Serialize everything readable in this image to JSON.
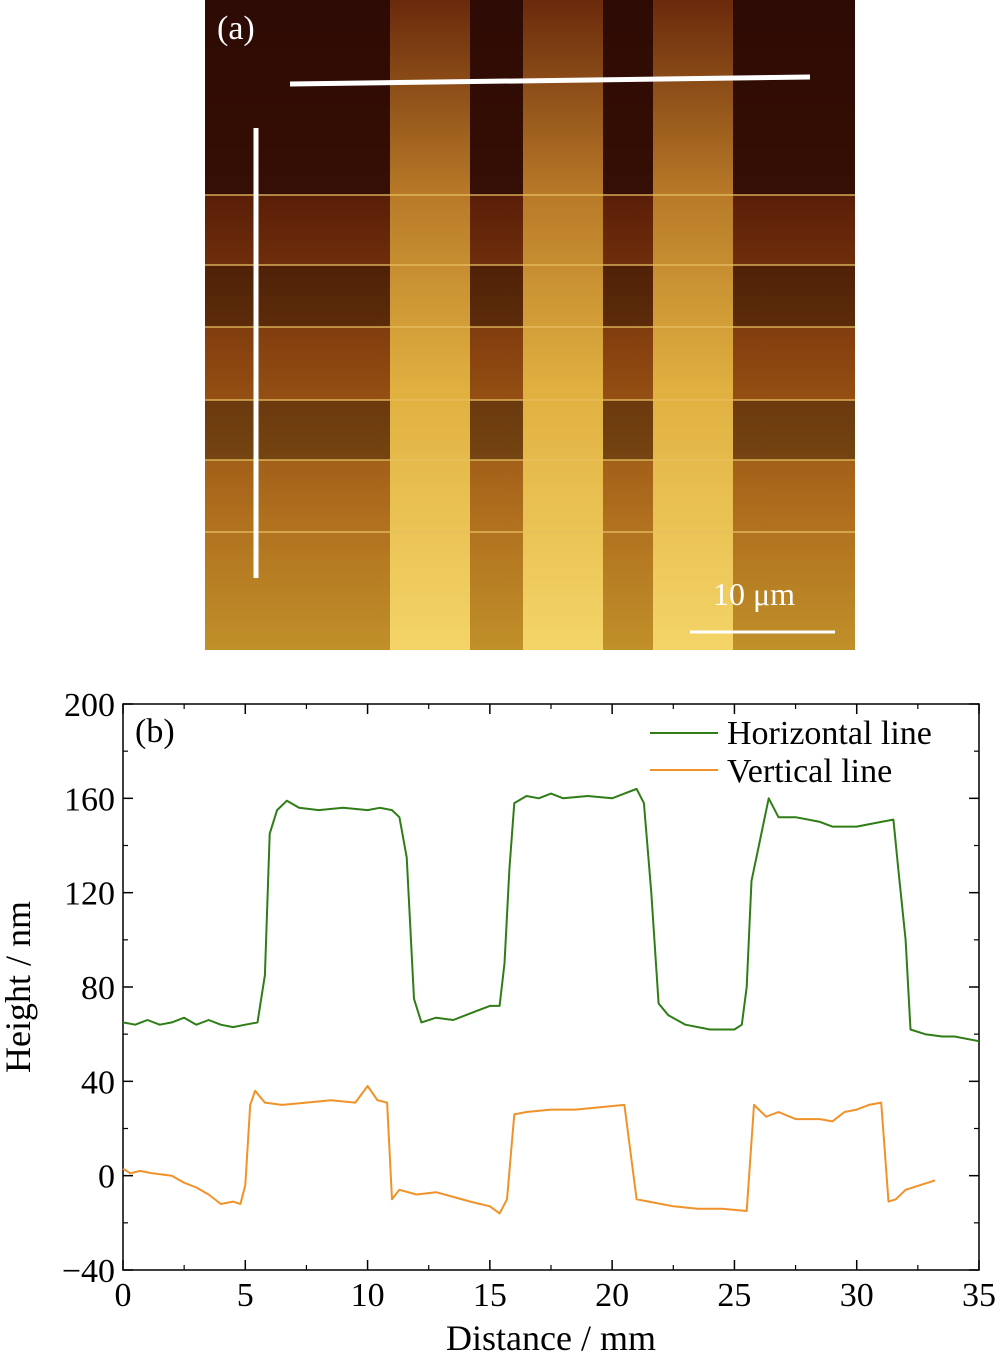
{
  "panel_a": {
    "label": "(a)",
    "scale_bar_label": "10 μm",
    "colors": {
      "dark": "#2a0a04",
      "mid": "#8a3a10",
      "bright": "#f0c850"
    }
  },
  "chart_data": {
    "type": "line",
    "panel_label": "(b)",
    "xlabel": "Distance / mm",
    "ylabel": "Height / nm",
    "xlim": [
      0,
      35
    ],
    "ylim": [
      -40,
      200
    ],
    "x_ticks": [
      "0",
      "5",
      "10",
      "15",
      "20",
      "25",
      "30",
      "35"
    ],
    "y_ticks": [
      "−40",
      "0",
      "40",
      "80",
      "120",
      "160",
      "200"
    ],
    "legend_position": "top-right",
    "grid": false,
    "series": [
      {
        "name": "Horizontal line",
        "color": "#2e7d17",
        "points": [
          [
            0,
            65
          ],
          [
            0.5,
            64
          ],
          [
            1,
            66
          ],
          [
            1.5,
            64
          ],
          [
            2,
            65
          ],
          [
            2.5,
            67
          ],
          [
            3,
            64
          ],
          [
            3.5,
            66
          ],
          [
            4,
            64
          ],
          [
            4.5,
            63
          ],
          [
            5,
            64
          ],
          [
            5.5,
            65
          ],
          [
            5.8,
            85
          ],
          [
            6,
            145
          ],
          [
            6.3,
            155
          ],
          [
            6.7,
            159
          ],
          [
            7.2,
            156
          ],
          [
            8,
            155
          ],
          [
            9,
            156
          ],
          [
            10,
            155
          ],
          [
            10.5,
            156
          ],
          [
            11,
            155
          ],
          [
            11.3,
            152
          ],
          [
            11.6,
            135
          ],
          [
            11.9,
            75
          ],
          [
            12.2,
            65
          ],
          [
            12.8,
            67
          ],
          [
            13.5,
            66
          ],
          [
            14,
            68
          ],
          [
            14.5,
            70
          ],
          [
            15,
            72
          ],
          [
            15.4,
            72
          ],
          [
            15.6,
            90
          ],
          [
            15.8,
            130
          ],
          [
            16,
            158
          ],
          [
            16.5,
            161
          ],
          [
            17,
            160
          ],
          [
            17.5,
            162
          ],
          [
            18,
            160
          ],
          [
            19,
            161
          ],
          [
            20,
            160
          ],
          [
            20.5,
            162
          ],
          [
            21,
            164
          ],
          [
            21.3,
            158
          ],
          [
            21.6,
            120
          ],
          [
            21.9,
            73
          ],
          [
            22.3,
            68
          ],
          [
            23,
            64
          ],
          [
            24,
            62
          ],
          [
            25,
            62
          ],
          [
            25.3,
            64
          ],
          [
            25.5,
            80
          ],
          [
            25.7,
            125
          ],
          [
            26,
            140
          ],
          [
            26.4,
            160
          ],
          [
            26.8,
            152
          ],
          [
            27.5,
            152
          ],
          [
            28.5,
            150
          ],
          [
            29,
            148
          ],
          [
            30,
            148
          ],
          [
            31,
            150
          ],
          [
            31.5,
            151
          ],
          [
            31.7,
            130
          ],
          [
            32,
            100
          ],
          [
            32.2,
            62
          ],
          [
            32.8,
            60
          ],
          [
            33.5,
            59
          ],
          [
            34,
            59
          ],
          [
            35,
            57
          ]
        ]
      },
      {
        "name": "Vertical line",
        "color": "#f0922a",
        "points": [
          [
            0,
            3
          ],
          [
            0.3,
            1
          ],
          [
            0.7,
            2
          ],
          [
            1.2,
            1
          ],
          [
            2,
            0
          ],
          [
            2.5,
            -3
          ],
          [
            3,
            -5
          ],
          [
            3.5,
            -8
          ],
          [
            4,
            -12
          ],
          [
            4.5,
            -11
          ],
          [
            4.8,
            -12
          ],
          [
            5,
            -4
          ],
          [
            5.2,
            30
          ],
          [
            5.4,
            36
          ],
          [
            5.8,
            31
          ],
          [
            6.5,
            30
          ],
          [
            7.5,
            31
          ],
          [
            8.5,
            32
          ],
          [
            9.5,
            31
          ],
          [
            10,
            38
          ],
          [
            10.4,
            32
          ],
          [
            10.8,
            31
          ],
          [
            11,
            -10
          ],
          [
            11.3,
            -6
          ],
          [
            12,
            -8
          ],
          [
            12.8,
            -7
          ],
          [
            13.5,
            -9
          ],
          [
            14.2,
            -11
          ],
          [
            15,
            -13
          ],
          [
            15.4,
            -16
          ],
          [
            15.7,
            -10
          ],
          [
            16,
            26
          ],
          [
            16.5,
            27
          ],
          [
            17.5,
            28
          ],
          [
            18.5,
            28
          ],
          [
            19.5,
            29
          ],
          [
            20.5,
            30
          ],
          [
            21,
            -10
          ],
          [
            21.5,
            -11
          ],
          [
            22.5,
            -13
          ],
          [
            23.5,
            -14
          ],
          [
            24.5,
            -14
          ],
          [
            25.5,
            -15
          ],
          [
            25.8,
            30
          ],
          [
            26.3,
            25
          ],
          [
            26.8,
            27
          ],
          [
            27.5,
            24
          ],
          [
            28.5,
            24
          ],
          [
            29,
            23
          ],
          [
            29.5,
            27
          ],
          [
            30,
            28
          ],
          [
            30.5,
            30
          ],
          [
            31,
            31
          ],
          [
            31.3,
            -11
          ],
          [
            31.6,
            -10
          ],
          [
            32,
            -6
          ],
          [
            32.6,
            -4
          ],
          [
            33.2,
            -2
          ]
        ]
      }
    ]
  }
}
